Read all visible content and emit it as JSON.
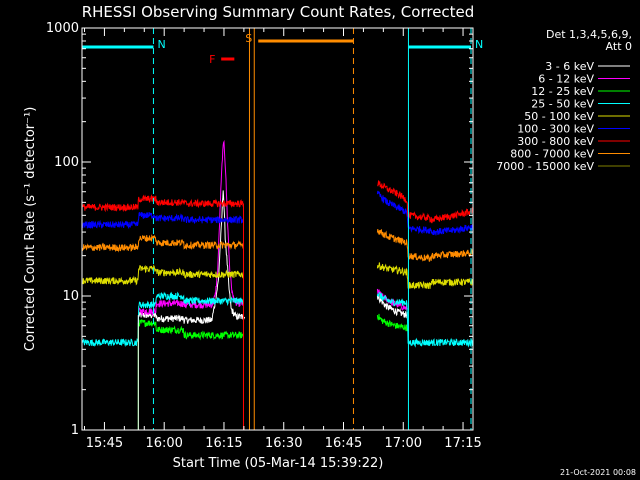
{
  "chart_data": {
    "type": "line",
    "title": "RHESSI Observing Summary Count Rates, Corrected",
    "xlabel": "Start Time (05-Mar-14 15:39:22)",
    "ylabel": "Corrected Count Rate (s⁻¹ detector⁻¹)",
    "x_tick_labels": [
      "15:45",
      "16:00",
      "16:15",
      "16:30",
      "16:45",
      "17:00",
      "17:15"
    ],
    "x_ticks_min": [
      45,
      60,
      75,
      90,
      105,
      120,
      135
    ],
    "xlim_min": [
      39.37,
      137.5
    ],
    "y_scale": "log",
    "ylim": [
      1,
      1000
    ],
    "y_tick_labels": [
      "1",
      "10",
      "100",
      "1000"
    ],
    "legend_title": [
      "Det 1,3,4,5,6,9,",
      "Att 0"
    ],
    "timestamp": "21-Oct-2021 00:08",
    "grid": false,
    "series": [
      {
        "name": "3 - 6 keV",
        "color": "#ffffff",
        "segments": [
          {
            "t": [
              39.5,
              53.5,
              53.6,
              57.9,
              58,
              64.9,
              65,
              71.9,
              72,
              72.8,
              73.6,
              74,
              74.4,
              74.8,
              75.3,
              76.2,
              76.8,
              78,
              79.9,
              80.2,
              82
            ],
            "v": [
              null,
              null,
              7.2,
              7.2,
              6.8,
              6.8,
              6.6,
              6.6,
              6.7,
              9,
              13,
              22,
              35,
              65,
              28,
              12,
              8,
              7,
              7,
              7,
              null
            ]
          },
          {
            "t": [
              113.5,
              114.5,
              115.5,
              117,
              119,
              121
            ],
            "v": [
              10,
              9.2,
              8.5,
              8,
              7.5,
              7.2
            ]
          }
        ]
      },
      {
        "name": "6 - 12 keV",
        "color": "#ff00ff",
        "segments": [
          {
            "t": [
              53.6,
              57.9,
              58,
              64.9,
              65,
              72,
              72.8,
              73.4,
              73.8,
              74.2,
              74.6,
              75,
              75.4,
              75.9,
              76.5,
              77.2,
              78,
              79.9
            ],
            "v": [
              7.7,
              7.7,
              8.8,
              8.8,
              8.6,
              8.6,
              10,
              15,
              30,
              60,
              110,
              145,
              85,
              35,
              15,
              10,
              8.8,
              8.8
            ]
          },
          {
            "t": [
              113.5,
              114.5,
              115.5,
              117,
              119,
              121
            ],
            "v": [
              11,
              10,
              9.6,
              9,
              8.5,
              8
            ]
          }
        ]
      },
      {
        "name": "12 - 25 keV",
        "color": "#00ff00",
        "segments": [
          {
            "t": [
              39.5,
              53.5,
              53.6,
              57.9,
              58,
              64.9,
              65,
              79.9
            ],
            "v": [
              null,
              null,
              6.3,
              6.3,
              5.6,
              5.6,
              5.1,
              5.1
            ]
          },
          {
            "t": [
              113.5,
              114.5,
              116,
              118,
              121,
              121.2,
              127
            ],
            "v": [
              7.2,
              6.6,
              6.3,
              6,
              5.8,
              null,
              null
            ]
          }
        ]
      },
      {
        "name": "25 - 50 keV",
        "color": "#00ffff",
        "segments": [
          {
            "t": [
              39.5,
              53.4,
              53.6,
              57.9,
              58,
              64.9,
              65,
              79.9
            ],
            "v": [
              4.5,
              4.5,
              8.6,
              8.6,
              10,
              10,
              9.2,
              9.2
            ]
          },
          {
            "t": [
              113.5,
              115,
              117,
              120.9,
              121.2,
              137.5
            ],
            "v": [
              10.5,
              9.6,
              9,
              9,
              4.5,
              4.5
            ]
          }
        ]
      },
      {
        "name": "50 - 100 keV",
        "color": "#dddd00",
        "segments": [
          {
            "t": [
              39.5,
              53.4,
              53.6,
              57.9,
              58,
              64.9,
              65,
              79.9
            ],
            "v": [
              13,
              13,
              16,
              16,
              15,
              15,
              14.5,
              14.5
            ]
          },
          {
            "t": [
              113.5,
              116,
              119,
              120.9,
              121.2,
              127,
              127.2,
              137.5
            ],
            "v": [
              17,
              16,
              15.5,
              15,
              12,
              12,
              12.7,
              12.7
            ]
          }
        ]
      },
      {
        "name": "100 - 300 keV",
        "color": "#0000ff",
        "segments": [
          {
            "t": [
              39.5,
              53.4,
              53.6,
              57.9,
              58,
              64.9,
              65,
              79.9
            ],
            "v": [
              34,
              34,
              40,
              40,
              38,
              38,
              37,
              37
            ]
          },
          {
            "t": [
              113.5,
              116,
              119,
              120.9,
              121.2,
              127,
              127.2,
              133,
              137.5
            ],
            "v": [
              58,
              50,
              45,
              42,
              32,
              31,
              30,
              31,
              33
            ]
          }
        ]
      },
      {
        "name": "300 - 800 keV",
        "color": "#ff0000",
        "segments": [
          {
            "t": [
              39.5,
              53.4,
              53.6,
              57.9,
              58,
              64.9,
              65,
              79.9
            ],
            "v": [
              46,
              46,
              53,
              53,
              50,
              50,
              49,
              49
            ]
          },
          {
            "t": [
              113.5,
              116,
              119,
              120.9,
              121.2,
              127,
              127.2,
              133,
              137.5
            ],
            "v": [
              70,
              63,
              57,
              52,
              40,
              38,
              37,
              40,
              43
            ]
          }
        ]
      },
      {
        "name": "800 - 7000 keV",
        "color": "#ff8c00",
        "segments": [
          {
            "t": [
              39.5,
              53.4,
              53.6,
              57.9,
              58,
              64.9,
              65,
              79.9
            ],
            "v": [
              23,
              23,
              27,
              27,
              25,
              25,
              24,
              24
            ]
          },
          {
            "t": [
              113.5,
              116,
              119,
              120.9,
              121.2,
              127,
              127.2,
              137.5
            ],
            "v": [
              31,
              28,
              26,
              25,
              20,
              19,
              20,
              21
            ]
          }
        ]
      },
      {
        "name": "7000 - 15000 keV",
        "color": "#7f7f00",
        "segments": []
      }
    ],
    "flag_labels": [
      {
        "label": "N",
        "color": "#00ffff",
        "t0": 39.5,
        "t1": 57.3
      },
      {
        "label": "N",
        "color": "#00ffff",
        "t0": 121.3,
        "t1": 137.0
      },
      {
        "label": "S",
        "color": "#ff8c00",
        "t0": 82.6,
        "t1": 107.5
      },
      {
        "label": "F",
        "color": "#ff0000",
        "t0": 73.8,
        "t1": 77.6
      }
    ],
    "vlines": [
      {
        "t": 57.3,
        "color": "#00ffff",
        "dashed": true
      },
      {
        "t": 121.3,
        "color": "#00ffff",
        "dashed": false
      },
      {
        "t": 137.0,
        "color": "#00ffff",
        "dashed": true
      },
      {
        "t": 81.4,
        "color": "#ff8c00",
        "dashed": false
      },
      {
        "t": 82.6,
        "color": "#ff8c00",
        "dashed": false
      },
      {
        "t": 107.5,
        "color": "#ff8c00",
        "dashed": true
      }
    ]
  }
}
